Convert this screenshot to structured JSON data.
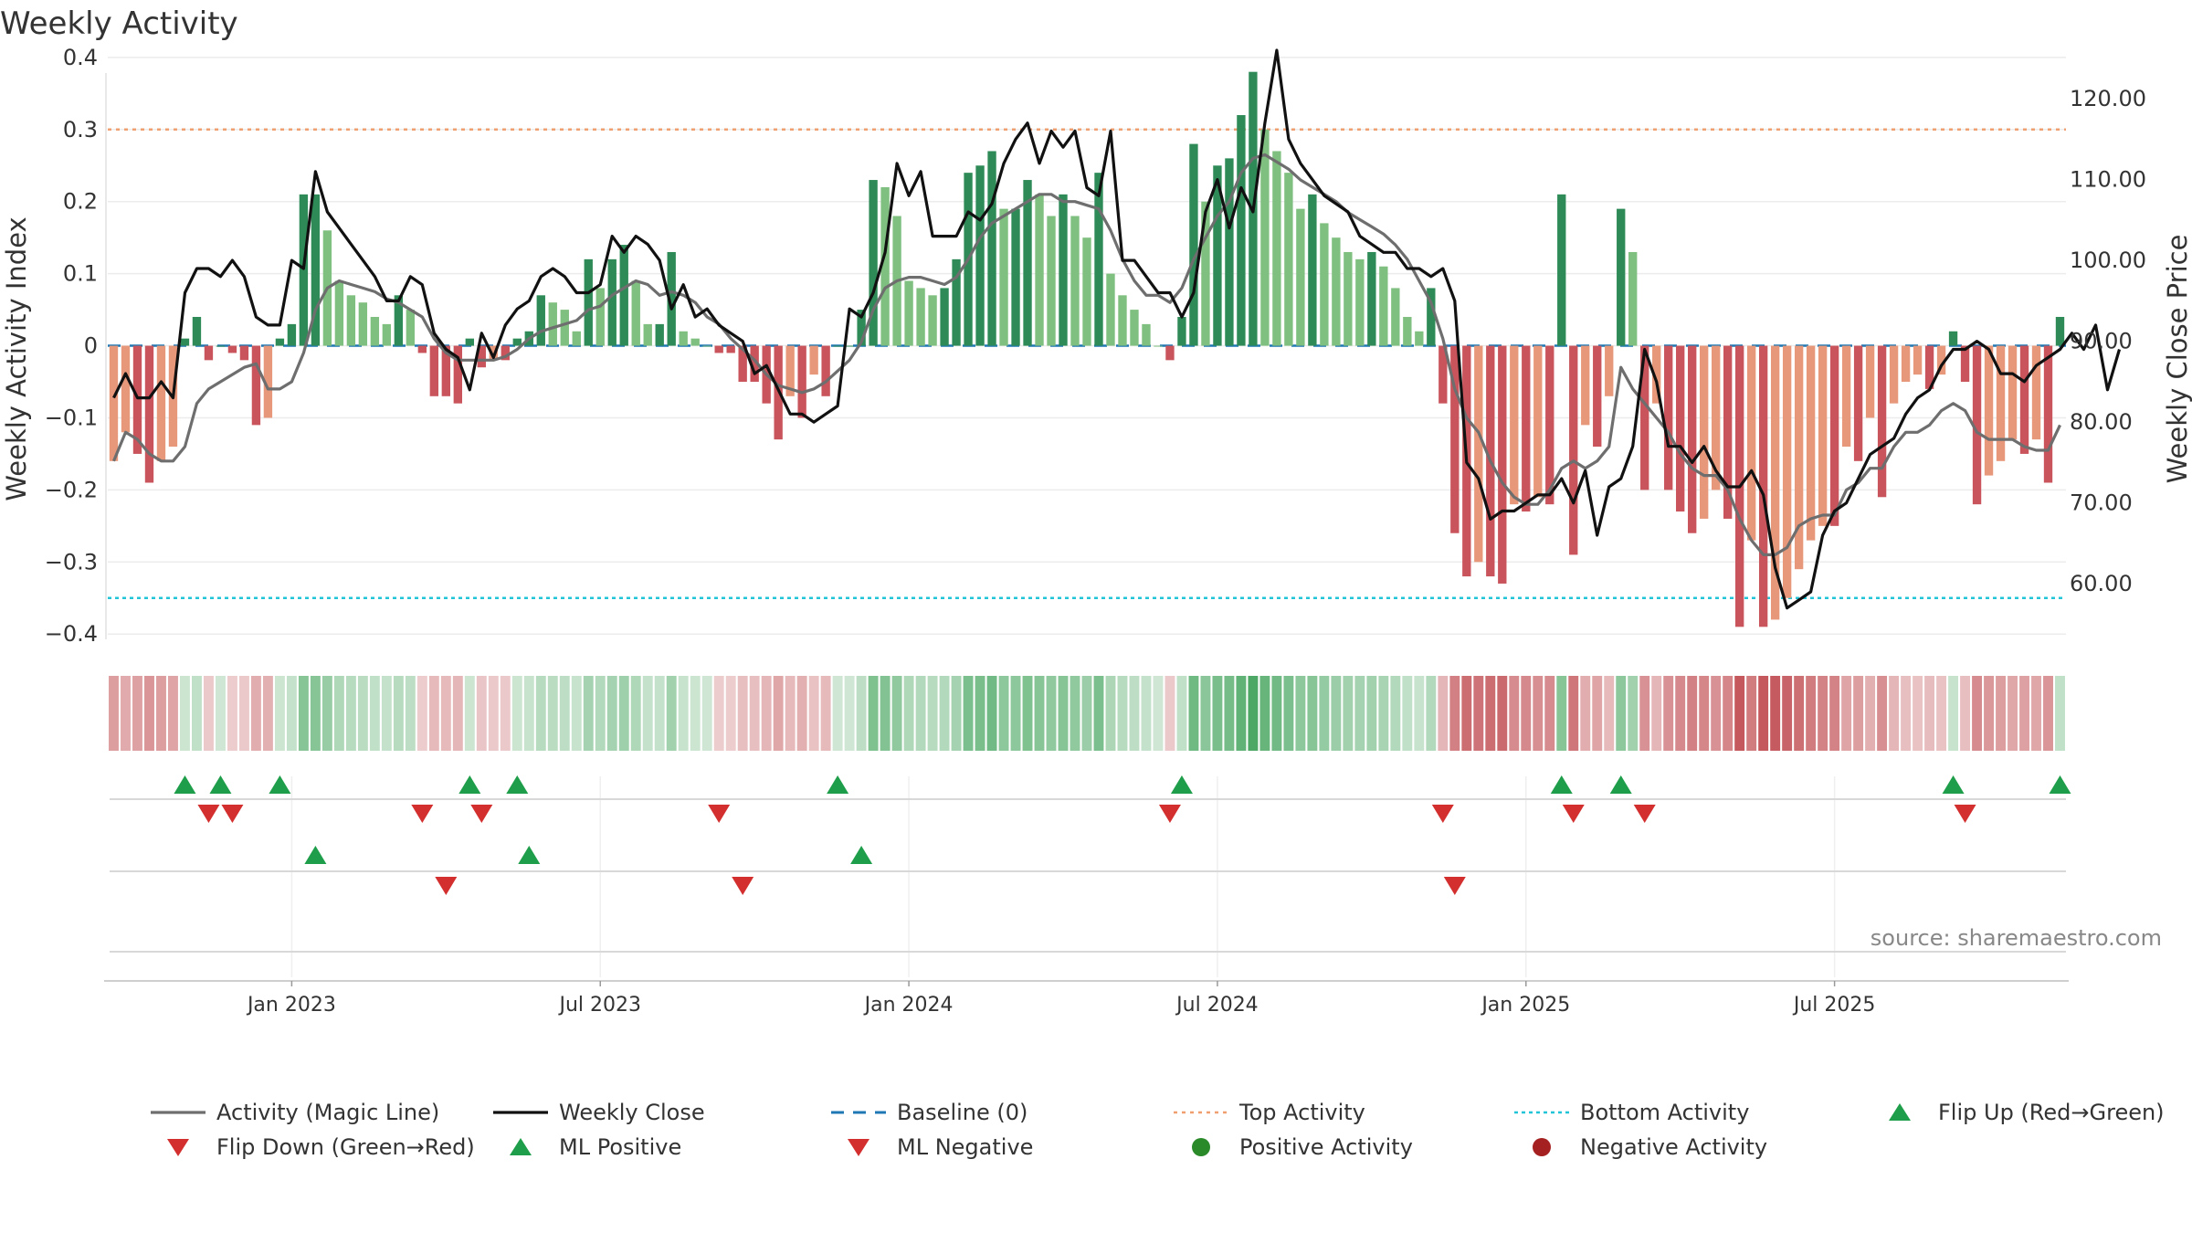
{
  "chart_data": {
    "type": "bar",
    "title": "Weekly Activity",
    "ylabel_left": "Weekly Activity Index",
    "ylabel_right": "Weekly Close Price",
    "source": "source: sharemaestro.com",
    "ylim_left": [
      -0.42,
      0.41
    ],
    "ylim_right": [
      52,
      126
    ],
    "yticks_left": [
      {
        "v": 0.4,
        "label": "0.4"
      },
      {
        "v": 0.3,
        "label": "0.3"
      },
      {
        "v": 0.2,
        "label": "0.2"
      },
      {
        "v": 0.1,
        "label": "0.1"
      },
      {
        "v": 0,
        "label": "0"
      },
      {
        "v": -0.1,
        "label": "−0.1"
      },
      {
        "v": -0.2,
        "label": "−0.2"
      },
      {
        "v": -0.3,
        "label": "−0.3"
      },
      {
        "v": -0.4,
        "label": "−0.4"
      }
    ],
    "yticks_right": [
      "60.00",
      "70.00",
      "80.00",
      "90.00",
      "100.00",
      "110.00",
      "120.00"
    ],
    "xticks": [
      {
        "week": 15,
        "label": "Jan 2023"
      },
      {
        "week": 41,
        "label": "Jul 2023"
      },
      {
        "week": 67,
        "label": "Jan 2024"
      },
      {
        "week": 93,
        "label": "Jul 2024"
      },
      {
        "week": 119,
        "label": "Jan 2025"
      },
      {
        "week": 145,
        "label": "Jul 2025"
      }
    ],
    "top_activity": 0.3,
    "bottom_activity": -0.35,
    "baseline": 0,
    "activity": [
      -0.16,
      -0.12,
      -0.15,
      -0.19,
      -0.16,
      -0.14,
      0.01,
      0.04,
      -0.02,
      0,
      -0.01,
      -0.02,
      -0.11,
      -0.1,
      0.01,
      0.03,
      0.21,
      0.21,
      0.16,
      0.09,
      0.07,
      0.06,
      0.04,
      0.03,
      0.07,
      0.05,
      -0.01,
      -0.07,
      -0.07,
      -0.08,
      0.01,
      -0.03,
      -0.02,
      -0.02,
      0.01,
      0.02,
      0.07,
      0.06,
      0.05,
      0.02,
      0.12,
      0.08,
      0.12,
      0.14,
      0.09,
      0.03,
      0.03,
      0.13,
      0.02,
      0.01,
      0,
      -0.01,
      -0.01,
      -0.05,
      -0.05,
      -0.08,
      -0.13,
      -0.07,
      -0.1,
      -0.04,
      -0.07,
      0,
      0,
      0.05,
      0.23,
      0.22,
      0.18,
      0.09,
      0.08,
      0.07,
      0.08,
      0.12,
      0.24,
      0.25,
      0.27,
      0.19,
      0.19,
      0.23,
      0.21,
      0.18,
      0.21,
      0.18,
      0.15,
      0.24,
      0.1,
      0.07,
      0.05,
      0.03,
      0,
      -0.02,
      0.04,
      0.28,
      0.2,
      0.25,
      0.26,
      0.32,
      0.38,
      0.3,
      0.27,
      0.24,
      0.19,
      0.21,
      0.17,
      0.15,
      0.13,
      0.12,
      0.13,
      0.11,
      0.08,
      0.04,
      0.02,
      0.08,
      -0.08,
      -0.26,
      -0.32,
      -0.3,
      -0.32,
      -0.33,
      -0.22,
      -0.23,
      -0.21,
      -0.22,
      0.21,
      -0.29,
      -0.11,
      -0.14,
      -0.07,
      0.19,
      0.13,
      -0.2,
      -0.08,
      -0.2,
      -0.23,
      -0.26,
      -0.24,
      -0.2,
      -0.24,
      -0.39,
      -0.27,
      -0.39,
      -0.38,
      -0.35,
      -0.31,
      -0.27,
      -0.25,
      -0.25,
      -0.14,
      -0.16,
      -0.1,
      -0.21,
      -0.08,
      -0.05,
      -0.04,
      -0.06,
      -0.04,
      0.02,
      -0.05,
      -0.22,
      -0.18,
      -0.16,
      -0.13,
      -0.15,
      -0.13,
      -0.19,
      0.04
    ],
    "magic_line": [
      -0.16,
      -0.12,
      -0.13,
      -0.15,
      -0.16,
      -0.16,
      -0.14,
      -0.08,
      -0.06,
      -0.05,
      -0.04,
      -0.03,
      -0.025,
      -0.06,
      -0.06,
      -0.05,
      -0.01,
      0.05,
      0.08,
      0.09,
      0.085,
      0.08,
      0.075,
      0.065,
      0.06,
      0.05,
      0.04,
      0.01,
      -0.01,
      -0.02,
      -0.02,
      -0.02,
      -0.02,
      -0.015,
      -0.005,
      0.01,
      0.02,
      0.025,
      0.03,
      0.035,
      0.05,
      0.055,
      0.07,
      0.08,
      0.09,
      0.085,
      0.07,
      0.075,
      0.07,
      0.06,
      0.04,
      0.03,
      0.01,
      -0.005,
      -0.02,
      -0.04,
      -0.055,
      -0.06,
      -0.065,
      -0.06,
      -0.05,
      -0.035,
      -0.02,
      0.005,
      0.05,
      0.08,
      0.09,
      0.095,
      0.095,
      0.09,
      0.085,
      0.095,
      0.12,
      0.15,
      0.17,
      0.18,
      0.19,
      0.2,
      0.21,
      0.21,
      0.2,
      0.2,
      0.195,
      0.19,
      0.16,
      0.12,
      0.09,
      0.07,
      0.07,
      0.06,
      0.08,
      0.12,
      0.15,
      0.18,
      0.2,
      0.24,
      0.26,
      0.265,
      0.255,
      0.245,
      0.23,
      0.22,
      0.21,
      0.2,
      0.185,
      0.175,
      0.165,
      0.155,
      0.14,
      0.12,
      0.09,
      0.06,
      0.01,
      -0.06,
      -0.1,
      -0.12,
      -0.16,
      -0.19,
      -0.21,
      -0.22,
      -0.22,
      -0.2,
      -0.17,
      -0.16,
      -0.17,
      -0.16,
      -0.14,
      -0.03,
      -0.06,
      -0.08,
      -0.1,
      -0.12,
      -0.15,
      -0.17,
      -0.18,
      -0.18,
      -0.2,
      -0.24,
      -0.27,
      -0.29,
      -0.29,
      -0.28,
      -0.25,
      -0.24,
      -0.235,
      -0.235,
      -0.2,
      -0.19,
      -0.17,
      -0.17,
      -0.14,
      -0.12,
      -0.12,
      -0.11,
      -0.09,
      -0.08,
      -0.09,
      -0.12,
      -0.13,
      -0.13,
      -0.13,
      -0.14,
      -0.145,
      -0.145,
      -0.11
    ],
    "weekly_close": [
      83,
      86,
      83,
      83,
      85,
      83,
      96,
      99,
      99,
      98,
      100,
      98,
      93,
      92,
      92,
      100,
      99,
      111,
      106,
      104,
      102,
      100,
      98,
      95,
      95,
      98,
      97,
      91,
      89,
      88,
      84,
      91,
      88,
      92,
      94,
      95,
      98,
      99,
      98,
      96,
      96,
      97,
      103,
      101,
      103,
      102,
      100,
      94,
      97,
      93,
      94,
      92,
      91,
      90,
      86,
      87,
      84,
      81,
      81,
      80,
      81,
      82,
      94,
      93,
      96,
      101,
      112,
      108,
      111,
      103,
      103,
      103,
      106,
      105,
      107,
      112,
      115,
      117,
      112,
      116,
      114,
      116,
      109,
      108,
      116,
      100,
      100,
      98,
      96,
      96,
      93,
      96,
      106,
      110,
      104,
      109,
      106,
      117,
      126,
      115,
      112,
      110,
      108,
      107,
      106,
      103,
      102,
      101,
      101,
      99,
      99,
      98,
      99,
      95,
      75,
      73,
      68,
      69,
      69,
      70,
      71,
      71,
      73,
      70,
      74,
      66,
      72,
      73,
      77,
      89,
      85,
      77,
      77,
      75,
      77,
      74,
      72,
      72,
      74,
      71,
      62,
      57,
      58,
      59,
      66,
      69,
      70,
      73,
      76,
      77,
      78,
      81,
      83,
      84,
      87,
      89,
      89,
      90,
      89,
      86,
      86,
      85,
      87,
      88,
      89,
      91,
      89,
      92,
      84,
      89
    ]
  },
  "legend": [
    {
      "label": "Activity (Magic Line)",
      "symbol": "line-gray"
    },
    {
      "label": "Weekly Close",
      "symbol": "line-black"
    },
    {
      "label": "Baseline (0)",
      "symbol": "dash-blue"
    },
    {
      "label": "Top Activity",
      "symbol": "dot-orange"
    },
    {
      "label": "Bottom Activity",
      "symbol": "dot-cyan"
    },
    {
      "label": "Flip Up (Red→Green)",
      "symbol": "triangle-up-green"
    },
    {
      "label": "Flip Down (Green→Red)",
      "symbol": "triangle-down-red"
    },
    {
      "label": "ML Positive",
      "symbol": "triangle-up-green"
    },
    {
      "label": "ML Negative",
      "symbol": "triangle-down-red"
    },
    {
      "label": "Positive Activity",
      "symbol": "circle-green"
    },
    {
      "label": "Negative Activity",
      "symbol": "circle-darkred"
    }
  ],
  "colors": {
    "pos_dark": "#2e8b57",
    "pos_light": "#7fbf7f",
    "neg_dark": "#c9545c",
    "neg_light": "#e8987a",
    "flip_up": "#1e9e4a",
    "flip_down": "#d32f2f",
    "top_line": "#f0a070",
    "bottom_line": "#22c4d8",
    "baseline": "#1f77b4",
    "magic": "#6e6e6e",
    "close": "#111111",
    "pos_circle": "#2a8a2a",
    "neg_circle": "#a52020"
  }
}
